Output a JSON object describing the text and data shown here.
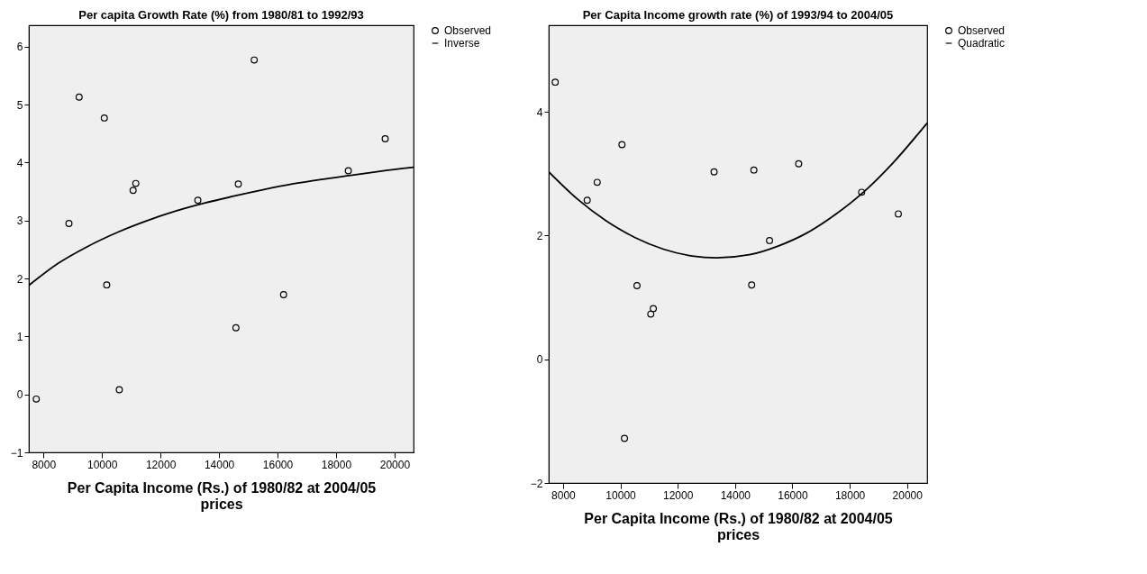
{
  "chart_data": [
    {
      "type": "scatter",
      "title": "Per capita Growth Rate (%) from 1980/81 to 1992/93",
      "xlabel": "Per Capita Income (Rs.) of 1980/82 at 2004/05 prices",
      "xlim": [
        7500,
        20650
      ],
      "xticks": [
        8000,
        10000,
        12000,
        14000,
        16000,
        18000,
        20000
      ],
      "ylim": [
        -1,
        6.37
      ],
      "yticks": [
        -1,
        0,
        1,
        2,
        3,
        4,
        5,
        6
      ],
      "grid": false,
      "legend": "top right",
      "series": [
        {
          "name": "Observed",
          "type": "scatter",
          "marker": "circle",
          "color": "#000000",
          "x": [
            7754,
            8871,
            9219,
            10080,
            10162,
            10592,
            11064,
            11156,
            13277,
            14578,
            14660,
            15203,
            16207,
            18420,
            19680
          ],
          "values": [
            -0.08,
            2.95,
            5.13,
            4.77,
            1.89,
            0.08,
            3.52,
            3.64,
            3.35,
            1.15,
            3.63,
            5.77,
            1.72,
            3.86,
            4.41
          ]
        },
        {
          "name": "Inverse",
          "type": "line",
          "line_style": "solid",
          "color": "#000000",
          "x": [
            7500,
            8500,
            9500,
            10500,
            11500,
            12500,
            13500,
            14500,
            15500,
            16500,
            17500,
            18500,
            19500,
            20650
          ],
          "values": [
            1.88,
            2.26,
            2.55,
            2.79,
            2.99,
            3.16,
            3.3,
            3.42,
            3.53,
            3.63,
            3.71,
            3.78,
            3.85,
            3.92
          ]
        }
      ]
    },
    {
      "type": "scatter",
      "title": "Per Capita Income  growth rate (%) of 1993/94 to 2004/05",
      "xlabel": "Per Capita Income (Rs.) of 1980/82 at 2004/05 prices",
      "xlim": [
        7500,
        20700
      ],
      "xticks": [
        8000,
        10000,
        12000,
        14000,
        16000,
        18000,
        20000
      ],
      "ylim": [
        -2,
        5.4
      ],
      "yticks": [
        -2,
        0,
        2,
        4
      ],
      "grid": false,
      "legend": "top right",
      "series": [
        {
          "name": "Observed",
          "type": "scatter",
          "marker": "circle",
          "color": "#000000",
          "x": [
            7727,
            8842,
            9191,
            10055,
            10142,
            10579,
            11060,
            11148,
            13268,
            14579,
            14656,
            15202,
            16219,
            18415,
            19694
          ],
          "values": [
            4.48,
            2.57,
            2.86,
            3.47,
            -1.28,
            1.19,
            0.73,
            0.82,
            3.03,
            1.2,
            3.06,
            1.92,
            3.16,
            2.7,
            2.35
          ]
        },
        {
          "name": "Quadratic",
          "type": "line",
          "line_style": "solid",
          "color": "#000000",
          "x": [
            7500,
            8500,
            9500,
            10500,
            11500,
            12500,
            13355,
            14500,
            15500,
            16500,
            17500,
            18500,
            19500,
            20700
          ],
          "values": [
            3.03,
            2.59,
            2.24,
            1.97,
            1.78,
            1.67,
            1.64,
            1.69,
            1.83,
            2.04,
            2.34,
            2.71,
            3.17,
            3.82
          ]
        }
      ]
    }
  ]
}
